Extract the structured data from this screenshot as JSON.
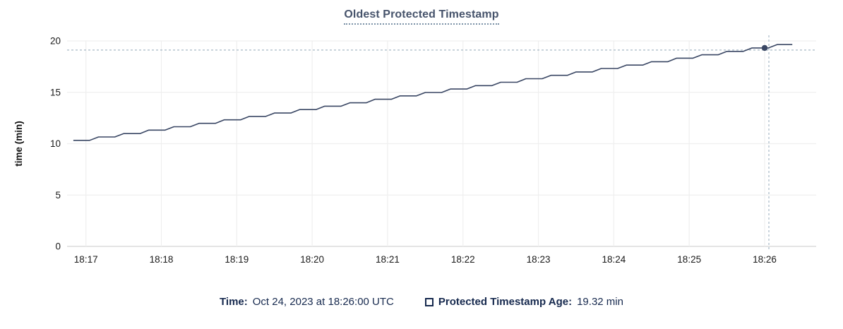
{
  "chart": {
    "title": "Oldest Protected Timestamp"
  },
  "caption": {
    "time_label": "Time:",
    "time_value": "Oct 24, 2023 at 18:26:00 UTC",
    "series_label": "Protected Timestamp Age:",
    "series_value": "19.32 min"
  },
  "colors": {
    "navy": "#16294e",
    "title": "#46536b",
    "underline": "#7d93a8",
    "line": "#3a4764",
    "crosshair": "#a7b8c6",
    "grid": "#efefef",
    "axisline": "#dcdcdc",
    "tick": "#1a1a1a"
  },
  "chart_data": {
    "type": "line",
    "title": "Oldest Protected Timestamp",
    "xlabel": "",
    "ylabel": "time (min)",
    "ylim": [
      0,
      20
    ],
    "yticks": [
      0,
      5,
      10,
      15,
      20
    ],
    "xticks": [
      "18:17",
      "18:18",
      "18:19",
      "18:20",
      "18:21",
      "18:22",
      "18:23",
      "18:24",
      "18:25",
      "18:26"
    ],
    "x_domain": [
      "18:16:45",
      "18:26:41"
    ],
    "grid": true,
    "legend_position": "bottom",
    "series": [
      {
        "name": "Protected Timestamp Age",
        "unit": "min",
        "points": [
          [
            "18:16:50",
            10.32
          ],
          [
            "18:17:03",
            10.32
          ],
          [
            "18:17:10",
            10.65
          ],
          [
            "18:17:23",
            10.65
          ],
          [
            "18:17:30",
            10.98
          ],
          [
            "18:17:43",
            10.98
          ],
          [
            "18:17:50",
            11.32
          ],
          [
            "18:18:03",
            11.32
          ],
          [
            "18:18:10",
            11.65
          ],
          [
            "18:18:23",
            11.65
          ],
          [
            "18:18:30",
            11.98
          ],
          [
            "18:18:43",
            11.98
          ],
          [
            "18:18:50",
            12.32
          ],
          [
            "18:19:03",
            12.32
          ],
          [
            "18:19:10",
            12.65
          ],
          [
            "18:19:23",
            12.65
          ],
          [
            "18:19:30",
            12.98
          ],
          [
            "18:19:43",
            12.98
          ],
          [
            "18:19:50",
            13.32
          ],
          [
            "18:20:03",
            13.32
          ],
          [
            "18:20:10",
            13.65
          ],
          [
            "18:20:23",
            13.65
          ],
          [
            "18:20:30",
            13.98
          ],
          [
            "18:20:43",
            13.98
          ],
          [
            "18:20:50",
            14.32
          ],
          [
            "18:21:03",
            14.32
          ],
          [
            "18:21:10",
            14.65
          ],
          [
            "18:21:23",
            14.65
          ],
          [
            "18:21:30",
            14.98
          ],
          [
            "18:21:43",
            14.98
          ],
          [
            "18:21:50",
            15.32
          ],
          [
            "18:22:03",
            15.32
          ],
          [
            "18:22:10",
            15.65
          ],
          [
            "18:22:23",
            15.65
          ],
          [
            "18:22:30",
            15.98
          ],
          [
            "18:22:43",
            15.98
          ],
          [
            "18:22:50",
            16.32
          ],
          [
            "18:23:03",
            16.32
          ],
          [
            "18:23:10",
            16.65
          ],
          [
            "18:23:23",
            16.65
          ],
          [
            "18:23:30",
            16.98
          ],
          [
            "18:23:43",
            16.98
          ],
          [
            "18:23:50",
            17.32
          ],
          [
            "18:24:03",
            17.32
          ],
          [
            "18:24:10",
            17.65
          ],
          [
            "18:24:23",
            17.65
          ],
          [
            "18:24:30",
            17.98
          ],
          [
            "18:24:43",
            17.98
          ],
          [
            "18:24:50",
            18.32
          ],
          [
            "18:25:03",
            18.32
          ],
          [
            "18:25:10",
            18.65
          ],
          [
            "18:25:23",
            18.65
          ],
          [
            "18:25:30",
            18.98
          ],
          [
            "18:25:43",
            18.98
          ],
          [
            "18:25:50",
            19.32
          ],
          [
            "18:26:03",
            19.32
          ],
          [
            "18:26:10",
            19.65
          ],
          [
            "18:26:22",
            19.65
          ]
        ]
      }
    ],
    "highlight": {
      "t": "18:26:00",
      "v": 19.32,
      "crosshair": true
    }
  }
}
